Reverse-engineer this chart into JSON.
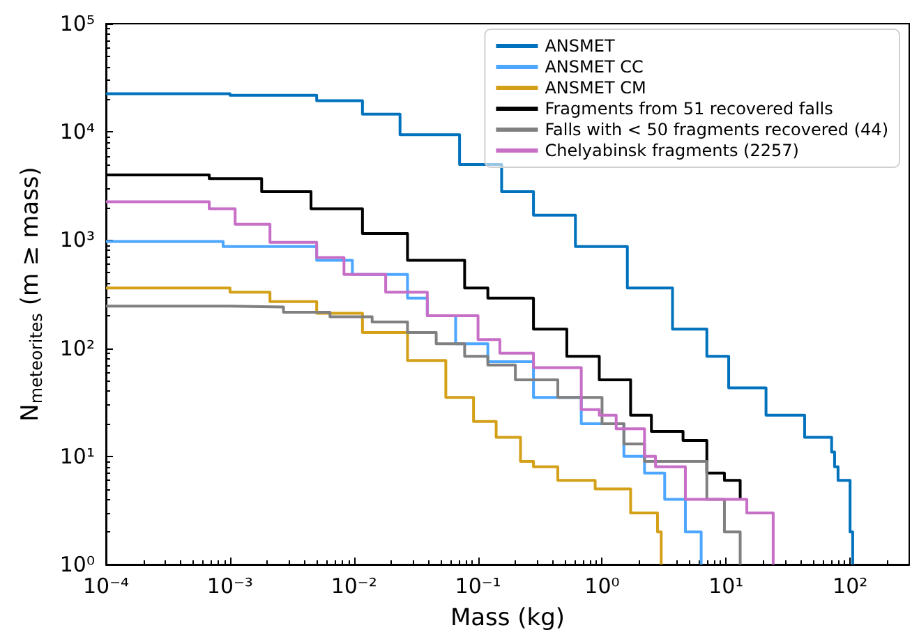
{
  "chart_data": {
    "type": "step",
    "xlabel": "Mass (kg)",
    "ylabel": "N$_{meteorites}$ (m ≥ mass)",
    "log": "xy",
    "grid": false,
    "legend": "top right",
    "marker": "none",
    "line_style": "solid",
    "xlim": [
      0.0001,
      300
    ],
    "ylim": [
      1,
      100000
    ],
    "xticks": [
      {
        "value": 0.0001,
        "label": "10⁻⁴"
      },
      {
        "value": 0.001,
        "label": "10⁻³"
      },
      {
        "value": 0.01,
        "label": "10⁻²"
      },
      {
        "value": 0.1,
        "label": "10⁻¹"
      },
      {
        "value": 1,
        "label": "10⁰"
      },
      {
        "value": 10,
        "label": "10¹"
      },
      {
        "value": 100,
        "label": "10²"
      }
    ],
    "yticks": [
      {
        "value": 1,
        "label": "10⁰"
      },
      {
        "value": 10,
        "label": "10¹"
      },
      {
        "value": 100,
        "label": "10²"
      },
      {
        "value": 1000,
        "label": "10³"
      },
      {
        "value": 10000,
        "label": "10⁴"
      },
      {
        "value": 100000,
        "label": "10⁵"
      }
    ],
    "series": [
      {
        "name": "ANSMET",
        "color": "#0072bd",
        "x": [
          0.0001,
          0.001,
          0.005,
          0.0117,
          0.0235,
          0.071,
          0.155,
          0.28,
          0.61,
          1.6,
          3.7,
          7,
          10.5,
          21,
          43,
          71,
          75,
          80,
          100,
          105
        ],
        "values": [
          22500,
          21800,
          19400,
          14600,
          9400,
          5000,
          2800,
          1700,
          870,
          360,
          150,
          84,
          43,
          24,
          15,
          11,
          8,
          6,
          2,
          1
        ]
      },
      {
        "name": "ANSMET CC",
        "color": "#4da6ff",
        "x": [
          0.0001,
          0.00088,
          0.005,
          0.0097,
          0.027,
          0.039,
          0.066,
          0.12,
          0.28,
          0.68,
          1.5,
          2.2,
          3.2,
          4.7,
          6.3
        ],
        "values": [
          970,
          870,
          650,
          480,
          290,
          200,
          110,
          75,
          35,
          20,
          10,
          7,
          4,
          2,
          1
        ]
      },
      {
        "name": "ANSMET CM",
        "color": "#d4a017",
        "x": [
          0.0001,
          0.001,
          0.0021,
          0.005,
          0.0117,
          0.027,
          0.055,
          0.092,
          0.14,
          0.22,
          0.28,
          0.44,
          0.88,
          1.7,
          2.8,
          3
        ],
        "values": [
          360,
          330,
          270,
          210,
          140,
          77,
          35,
          21,
          15,
          9,
          8,
          6,
          5,
          3,
          2,
          1
        ]
      },
      {
        "name": "Fragments from 51 recovered falls",
        "color": "#000000",
        "x": [
          0.0001,
          0.00068,
          0.0018,
          0.0045,
          0.0117,
          0.027,
          0.078,
          0.12,
          0.28,
          0.52,
          0.95,
          1.7,
          2.5,
          4.5,
          7,
          9.7,
          13
        ],
        "values": [
          4000,
          3700,
          2800,
          1950,
          1150,
          650,
          360,
          290,
          150,
          84,
          51,
          24,
          17,
          14,
          7,
          6,
          4
        ]
      },
      {
        "name": "Falls with < 50 fragments recovered (44)",
        "color": "#808080",
        "x": [
          0.0001,
          0.001,
          0.0027,
          0.0064,
          0.014,
          0.027,
          0.046,
          0.078,
          0.12,
          0.2,
          0.44,
          1,
          1.5,
          2.2,
          7,
          9.7,
          13
        ],
        "values": [
          245,
          240,
          215,
          195,
          175,
          140,
          110,
          84,
          70,
          51,
          35,
          20,
          13,
          9,
          4,
          2,
          1
        ]
      },
      {
        "name": "Chelyabinsk fragments (2257)",
        "color": "#c76ec7",
        "x": [
          0.0001,
          0.00068,
          0.0011,
          0.0021,
          0.005,
          0.0083,
          0.018,
          0.039,
          0.1,
          0.15,
          0.28,
          0.68,
          0.95,
          1.3,
          2.2,
          2.7,
          4.7,
          14.7,
          24
        ],
        "values": [
          2260,
          1950,
          1400,
          950,
          690,
          480,
          330,
          200,
          120,
          90,
          66,
          27,
          24,
          18,
          10,
          8,
          4,
          3,
          1
        ]
      }
    ]
  }
}
